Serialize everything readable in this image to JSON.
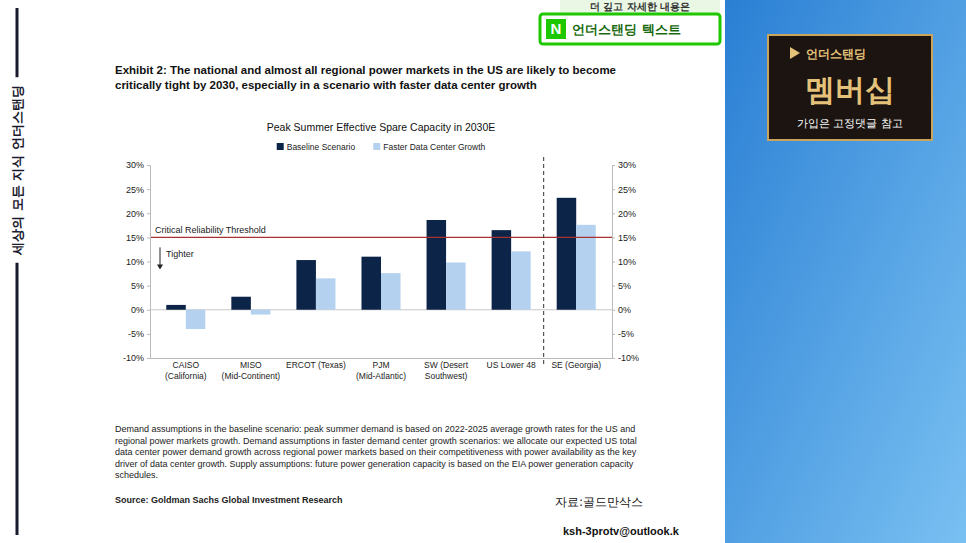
{
  "chart_data": {
    "type": "bar",
    "exhibit": "Exhibit 2: The national and almost all regional power markets in the US are likely to become critically tight by 2030, especially in a scenario with faster data center growth",
    "title": "Peak Summer Effective Spare Capacity in 2030E",
    "categories": [
      "CAISO (California)",
      "MISO (Mid-Continent)",
      "ERCOT (Texas)",
      "PJM (Mid-Atlantic)",
      "SW (Desert Southwest)",
      "US Lower 48",
      "SE (Georgia)"
    ],
    "series": [
      {
        "name": "Baseline Scenario",
        "color": "#0c2447",
        "values": [
          1.0,
          2.7,
          10.3,
          11.0,
          18.6,
          16.5,
          23.2
        ]
      },
      {
        "name": "Faster Data Center Growth",
        "color": "#b4d2ef",
        "values": [
          -4.0,
          -1.0,
          6.5,
          7.6,
          9.8,
          12.1,
          17.6
        ]
      }
    ],
    "ylim": [
      -10,
      30
    ],
    "yticks": [
      {
        "value": -10,
        "label": "-10%"
      },
      {
        "value": -5,
        "label": "-5%"
      },
      {
        "value": 0,
        "label": "0%"
      },
      {
        "value": 5,
        "label": "5%"
      },
      {
        "value": 10,
        "label": "10%"
      },
      {
        "value": 15,
        "label": "15%"
      },
      {
        "value": 20,
        "label": "20%"
      },
      {
        "value": 25,
        "label": "25%"
      },
      {
        "value": 30,
        "label": "30%"
      }
    ],
    "y2lim": [
      -10,
      30
    ],
    "y2ticks": [
      {
        "value": -10,
        "label": "-10%"
      },
      {
        "value": -5,
        "label": "-5%"
      },
      {
        "value": 0,
        "label": "0%"
      },
      {
        "value": 5,
        "label": "5%"
      },
      {
        "value": 10,
        "label": "10%"
      },
      {
        "value": 15,
        "label": "15%"
      },
      {
        "value": 20,
        "label": "20%"
      },
      {
        "value": 25,
        "label": "25%"
      },
      {
        "value": 30,
        "label": "30%"
      }
    ],
    "threshold": {
      "value": 15,
      "label": "Critical Reliability Threshold"
    },
    "annotations": [
      {
        "text": "Tighter"
      }
    ],
    "legend": "top",
    "grid": false,
    "notes": "Demand assumptions in the baseline scenario: peak summer demand is based on 2022-2025 average growth rates for the US and regional power markets growth. Demand assumptions in faster demand center growth scenarios: we allocate our expected US total data center power demand growth across regional power markets based on their competitiveness with power availability as the key driver of data center growth. Supply assumptions: future power generation capacity is based on the EIA power generation capacity schedules.",
    "source": "Source: Goldman Sachs Global Investment Research",
    "source_ko": "자료:골드만삭스"
  },
  "page": {
    "side_label": "세상의 모든 지식 언더스탠딩",
    "banner_top": "더 깊고 자세한 내용은",
    "banner_logo": "N",
    "banner_text": "언더스탠딩 텍스트",
    "badge_top": "언더스탠딩",
    "badge_main": "멤버십",
    "badge_sub": "가입은 고정댓글 참고",
    "email": "ksh-3protv@outlook.k"
  }
}
